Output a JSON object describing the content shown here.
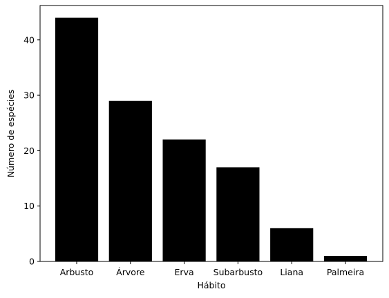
{
  "chart_data": {
    "type": "bar",
    "categories": [
      "Arbusto",
      "Árvore",
      "Erva",
      "Subarbusto",
      "Liana",
      "Palmeira"
    ],
    "values": [
      44,
      29,
      22,
      17,
      6,
      1
    ],
    "title": "",
    "xlabel": "Hábito",
    "ylabel": "Número de espécies",
    "ylim": [
      0,
      46.2
    ],
    "yticks": [
      0,
      10,
      20,
      30,
      40
    ],
    "grid": false,
    "bar_color": "#000000"
  }
}
